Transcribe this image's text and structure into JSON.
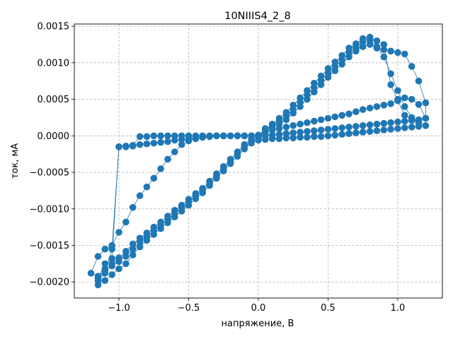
{
  "chart_data": {
    "type": "scatter",
    "title": "10NIIIS4_2_8",
    "xlabel": "напряжение, В",
    "ylabel": "ток, мА",
    "xlim": [
      -1.32,
      1.32
    ],
    "ylim": [
      -0.00222,
      0.00153
    ],
    "xticks": [
      -1.0,
      -0.5,
      0.0,
      0.5,
      1.0
    ],
    "xtick_labels": [
      "−1.0",
      "−0.5",
      "0.0",
      "0.5",
      "1.0"
    ],
    "yticks": [
      -0.002,
      -0.0015,
      -0.001,
      -0.0005,
      0.0,
      0.0005,
      0.001,
      0.0015
    ],
    "ytick_labels": [
      "−0.0020",
      "−0.0015",
      "−0.0010",
      "−0.0005",
      "0.0000",
      "0.0005",
      "0.0010",
      "0.0015"
    ],
    "grid": true,
    "color": "#1f77b4",
    "series": [
      {
        "points": [
          [
            0,
            0
          ],
          [
            0.05,
            8e-05
          ],
          [
            0.1,
            0.00012
          ],
          [
            0.15,
            0.00016
          ],
          [
            0.2,
            0.00022
          ],
          [
            0.25,
            0.00031
          ],
          [
            0.3,
            0.0004
          ],
          [
            0.35,
            0.0005
          ],
          [
            0.4,
            0.0006
          ],
          [
            0.45,
            0.0007
          ],
          [
            0.5,
            0.0008
          ],
          [
            0.55,
            0.00089
          ],
          [
            0.6,
            0.00098
          ],
          [
            0.65,
            0.00108
          ],
          [
            0.7,
            0.00116
          ],
          [
            0.75,
            0.00122
          ],
          [
            0.8,
            0.00125
          ],
          [
            0.85,
            0.0012
          ],
          [
            0.9,
            0.00118
          ],
          [
            0.95,
            0.00116
          ],
          [
            1.0,
            0.00114
          ],
          [
            1.05,
            0.00112
          ],
          [
            1.1,
            0.00095
          ],
          [
            1.15,
            0.00075
          ],
          [
            1.2,
            0.00045
          ],
          [
            1.2,
            0.00024
          ],
          [
            1.15,
            0.00022
          ],
          [
            1.1,
            0.00021
          ],
          [
            1.05,
            0.0002
          ],
          [
            1.0,
            0.00019
          ],
          [
            0.95,
            0.00018
          ],
          [
            0.9,
            0.00017
          ],
          [
            0.85,
            0.00016
          ],
          [
            0.8,
            0.00015
          ],
          [
            0.75,
            0.00014
          ],
          [
            0.7,
            0.00013
          ],
          [
            0.65,
            0.00012
          ],
          [
            0.6,
            0.00011
          ],
          [
            0.55,
            0.0001
          ],
          [
            0.5,
            9e-05
          ],
          [
            0.45,
            8e-05
          ],
          [
            0.4,
            7e-05
          ],
          [
            0.35,
            6e-05
          ],
          [
            0.3,
            5e-05
          ],
          [
            0.25,
            4e-05
          ],
          [
            0.2,
            3e-05
          ],
          [
            0.15,
            2e-05
          ],
          [
            0.1,
            1e-05
          ],
          [
            0.05,
            0
          ],
          [
            0,
            -3e-05
          ],
          [
            -0.05,
            -8e-05
          ],
          [
            -0.1,
            -0.00015
          ],
          [
            -0.15,
            -0.00025
          ],
          [
            -0.2,
            -0.00035
          ],
          [
            -0.25,
            -0.00045
          ],
          [
            -0.3,
            -0.00055
          ],
          [
            -0.35,
            -0.00065
          ],
          [
            -0.4,
            -0.00075
          ],
          [
            -0.45,
            -0.00082
          ],
          [
            -0.5,
            -0.0009
          ],
          [
            -0.55,
            -0.00098
          ],
          [
            -0.6,
            -0.00106
          ],
          [
            -0.65,
            -0.00114
          ],
          [
            -0.7,
            -0.00122
          ],
          [
            -0.75,
            -0.0013
          ],
          [
            -0.8,
            -0.00138
          ],
          [
            -0.85,
            -0.00145
          ],
          [
            -0.9,
            -0.00155
          ],
          [
            -0.95,
            -0.00165
          ],
          [
            -1.0,
            -0.00172
          ],
          [
            -1.05,
            -0.00178
          ],
          [
            -1.1,
            -0.00185
          ],
          [
            -1.15,
            -0.00192
          ],
          [
            -1.2,
            -0.00188
          ],
          [
            -1.15,
            -0.00165
          ],
          [
            -1.1,
            -0.00155
          ],
          [
            -1.05,
            -0.0015
          ],
          [
            -1.0,
            -0.00132
          ],
          [
            -0.95,
            -0.00118
          ],
          [
            -0.9,
            -0.00098
          ],
          [
            -0.85,
            -0.00082
          ],
          [
            -0.8,
            -0.0007
          ],
          [
            -0.75,
            -0.00058
          ],
          [
            -0.7,
            -0.00045
          ],
          [
            -0.65,
            -0.00032
          ],
          [
            -0.6,
            -0.00022
          ],
          [
            -0.55,
            -0.00012
          ],
          [
            -0.5,
            -7e-05
          ],
          [
            -0.45,
            -4e-05
          ],
          [
            -0.4,
            -2e-05
          ],
          [
            -0.35,
            -1e-05
          ],
          [
            -0.3,
            0
          ],
          [
            -0.25,
            0
          ],
          [
            -0.2,
            0
          ],
          [
            -0.15,
            0
          ],
          [
            -0.1,
            0
          ],
          [
            -0.05,
            0
          ],
          [
            0,
            0
          ]
        ]
      },
      {
        "points": [
          [
            0,
            0
          ],
          [
            0.05,
            0.0001
          ],
          [
            0.1,
            0.00014
          ],
          [
            0.15,
            0.0002
          ],
          [
            0.2,
            0.00028
          ],
          [
            0.25,
            0.00036
          ],
          [
            0.3,
            0.00046
          ],
          [
            0.35,
            0.00056
          ],
          [
            0.4,
            0.00066
          ],
          [
            0.45,
            0.00076
          ],
          [
            0.5,
            0.00086
          ],
          [
            0.55,
            0.00095
          ],
          [
            0.6,
            0.00104
          ],
          [
            0.65,
            0.00114
          ],
          [
            0.7,
            0.00121
          ],
          [
            0.75,
            0.00128
          ],
          [
            0.8,
            0.00131
          ],
          [
            0.85,
            0.00122
          ],
          [
            0.9,
            0.00108
          ],
          [
            0.95,
            0.00085
          ],
          [
            1.0,
            0.00062
          ],
          [
            1.05,
            0.0004
          ],
          [
            1.1,
            0.00025
          ],
          [
            1.15,
            0.00018
          ],
          [
            1.2,
            0.00014
          ],
          [
            1.15,
            0.00013
          ],
          [
            1.1,
            0.00012
          ],
          [
            1.05,
            0.00011
          ],
          [
            1.0,
            0.0001
          ],
          [
            0.95,
            9e-05
          ],
          [
            0.9,
            8e-05
          ],
          [
            0.85,
            7e-05
          ],
          [
            0.8,
            6e-05
          ],
          [
            0.75,
            5e-05
          ],
          [
            0.7,
            4e-05
          ],
          [
            0.65,
            3e-05
          ],
          [
            0.6,
            2e-05
          ],
          [
            0.55,
            1e-05
          ],
          [
            0.5,
            0
          ],
          [
            0.45,
            -1e-05
          ],
          [
            0.4,
            -1e-05
          ],
          [
            0.35,
            -2e-05
          ],
          [
            0.3,
            -2e-05
          ],
          [
            0.25,
            -3e-05
          ],
          [
            0.2,
            -3e-05
          ],
          [
            0.15,
            -4e-05
          ],
          [
            0.1,
            -4e-05
          ],
          [
            0.05,
            -5e-05
          ],
          [
            0,
            -6e-05
          ],
          [
            -0.05,
            -0.0001
          ],
          [
            -0.1,
            -0.00018
          ],
          [
            -0.15,
            -0.00028
          ],
          [
            -0.2,
            -0.00038
          ],
          [
            -0.25,
            -0.00048
          ],
          [
            -0.3,
            -0.00058
          ],
          [
            -0.35,
            -0.00068
          ],
          [
            -0.4,
            -0.00078
          ],
          [
            -0.45,
            -0.00086
          ],
          [
            -0.5,
            -0.00095
          ],
          [
            -0.55,
            -0.00103
          ],
          [
            -0.6,
            -0.00111
          ],
          [
            -0.65,
            -0.00119
          ],
          [
            -0.7,
            -0.00127
          ],
          [
            -0.75,
            -0.00135
          ],
          [
            -0.8,
            -0.00143
          ],
          [
            -0.85,
            -0.00152
          ],
          [
            -0.9,
            -0.00163
          ],
          [
            -0.95,
            -0.00175
          ],
          [
            -1.0,
            -0.00182
          ],
          [
            -1.05,
            -0.0019
          ],
          [
            -1.1,
            -0.00198
          ],
          [
            -1.15,
            -0.00204
          ],
          [
            -1.15,
            -0.00195
          ],
          [
            -1.1,
            -0.00175
          ],
          [
            -1.05,
            -0.00168
          ],
          [
            -1.0,
            -0.00015
          ],
          [
            -0.95,
            -0.00015
          ],
          [
            -0.9,
            -0.00014
          ],
          [
            -0.85,
            -0.00012
          ],
          [
            -0.8,
            -0.00011
          ],
          [
            -0.75,
            -0.0001
          ],
          [
            -0.7,
            -9e-05
          ],
          [
            -0.65,
            -8e-05
          ],
          [
            -0.6,
            -6e-05
          ],
          [
            -0.55,
            -5e-05
          ],
          [
            -0.5,
            -4e-05
          ],
          [
            -0.45,
            -3e-05
          ],
          [
            -0.4,
            -2e-05
          ],
          [
            -0.35,
            -1e-05
          ],
          [
            -0.3,
            0
          ],
          [
            -0.25,
            0
          ],
          [
            -0.2,
            0
          ],
          [
            -0.15,
            0
          ],
          [
            -0.1,
            0
          ],
          [
            -0.05,
            0
          ],
          [
            0,
            0
          ]
        ]
      },
      {
        "points": [
          [
            0,
            0
          ],
          [
            0.05,
            6e-05
          ],
          [
            0.1,
            0.00016
          ],
          [
            0.15,
            0.00024
          ],
          [
            0.2,
            0.00032
          ],
          [
            0.25,
            0.00042
          ],
          [
            0.3,
            0.00052
          ],
          [
            0.35,
            0.00062
          ],
          [
            0.4,
            0.00072
          ],
          [
            0.45,
            0.00082
          ],
          [
            0.5,
            0.00092
          ],
          [
            0.55,
            0.00101
          ],
          [
            0.6,
            0.0011
          ],
          [
            0.65,
            0.0012
          ],
          [
            0.7,
            0.00126
          ],
          [
            0.75,
            0.00133
          ],
          [
            0.8,
            0.00135
          ],
          [
            0.85,
            0.0013
          ],
          [
            0.9,
            0.00125
          ],
          [
            0.95,
            0.0007
          ],
          [
            1.0,
            0.00048
          ],
          [
            1.05,
            0.00028
          ],
          [
            1.1,
            0.00022
          ],
          [
            1.15,
            0.00019
          ],
          [
            1.2,
            0.00024
          ],
          [
            1.15,
            0.00043
          ],
          [
            1.1,
            0.0005
          ],
          [
            1.05,
            0.00052
          ],
          [
            1.0,
            0.0005
          ],
          [
            0.95,
            0.00044
          ],
          [
            0.9,
            0.00042
          ],
          [
            0.85,
            0.0004
          ],
          [
            0.8,
            0.00038
          ],
          [
            0.75,
            0.00036
          ],
          [
            0.7,
            0.00033
          ],
          [
            0.65,
            0.0003
          ],
          [
            0.6,
            0.00028
          ],
          [
            0.55,
            0.00026
          ],
          [
            0.5,
            0.00024
          ],
          [
            0.45,
            0.00022
          ],
          [
            0.4,
            0.0002
          ],
          [
            0.35,
            0.00018
          ],
          [
            0.3,
            0.00016
          ],
          [
            0.25,
            0.00014
          ],
          [
            0.2,
            0.00012
          ],
          [
            0.15,
            0.0001
          ],
          [
            0.1,
            8e-05
          ],
          [
            0.05,
            4e-05
          ],
          [
            0,
            1e-05
          ],
          [
            -0.05,
            -4e-05
          ],
          [
            -0.1,
            -0.00012
          ],
          [
            -0.15,
            -0.00022
          ],
          [
            -0.2,
            -0.00032
          ],
          [
            -0.25,
            -0.00042
          ],
          [
            -0.3,
            -0.00052
          ],
          [
            -0.35,
            -0.00062
          ],
          [
            -0.4,
            -0.00072
          ],
          [
            -0.45,
            -0.00079
          ],
          [
            -0.5,
            -0.00087
          ],
          [
            -0.55,
            -0.00095
          ],
          [
            -0.6,
            -0.00102
          ],
          [
            -0.65,
            -0.0011
          ],
          [
            -0.7,
            -0.00118
          ],
          [
            -0.75,
            -0.00125
          ],
          [
            -0.8,
            -0.00133
          ],
          [
            -0.85,
            -0.0014
          ],
          [
            -0.9,
            -0.00148
          ],
          [
            -0.95,
            -0.00158
          ],
          [
            -1.0,
            -0.00167
          ],
          [
            -1.05,
            -0.00175
          ],
          [
            -1.1,
            -0.00182
          ],
          [
            -1.15,
            -0.00198
          ],
          [
            -1.1,
            -0.00188
          ],
          [
            -1.05,
            -0.00155
          ],
          [
            -1.0,
            -0.00015
          ],
          [
            -0.95,
            -0.00014
          ],
          [
            -0.9,
            -0.00013
          ],
          [
            -0.85,
            -1e-05
          ],
          [
            -0.8,
            -1e-05
          ],
          [
            -0.75,
            0
          ],
          [
            -0.7,
            0
          ],
          [
            -0.65,
            0
          ],
          [
            -0.6,
            0
          ],
          [
            -0.55,
            0
          ],
          [
            -0.5,
            0
          ],
          [
            -0.45,
            0
          ],
          [
            -0.4,
            0
          ],
          [
            -0.35,
            0
          ],
          [
            -0.3,
            0
          ],
          [
            -0.25,
            0
          ],
          [
            -0.2,
            0
          ],
          [
            -0.15,
            0
          ],
          [
            -0.1,
            0
          ],
          [
            -0.05,
            0
          ],
          [
            0,
            0
          ]
        ]
      }
    ]
  }
}
